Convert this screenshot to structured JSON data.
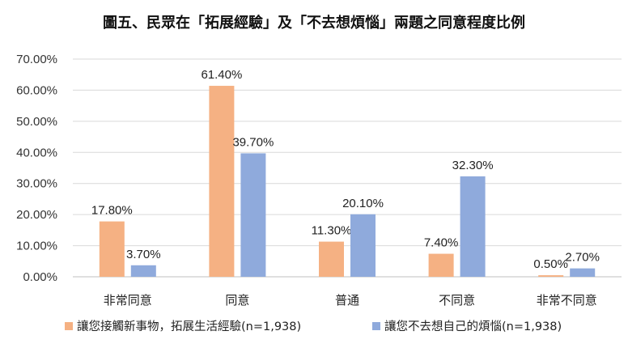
{
  "chart_data": {
    "type": "bar",
    "title": "圖五、民眾在「拓展經驗」及「不去想煩惱」兩題之同意程度比例",
    "categories": [
      "非常同意",
      "同意",
      "普通",
      "不同意",
      "非常不同意"
    ],
    "series": [
      {
        "name": "讓您接觸新事物，拓展生活經驗(n=1,938)",
        "values": [
          17.8,
          61.4,
          11.3,
          7.4,
          0.5
        ],
        "labels": [
          "17.80%",
          "61.40%",
          "11.30%",
          "7.40%",
          "0.50%"
        ],
        "color": "#f5b183"
      },
      {
        "name": "讓您不去想自己的煩惱(n=1,938)",
        "values": [
          3.7,
          39.7,
          20.1,
          32.3,
          2.7
        ],
        "labels": [
          "3.70%",
          "39.70%",
          "20.10%",
          "32.30%",
          "2.70%"
        ],
        "color": "#8faadc"
      }
    ],
    "yticks": [
      "0.00%",
      "10.00%",
      "20.00%",
      "30.00%",
      "40.00%",
      "50.00%",
      "60.00%",
      "70.00%"
    ],
    "ylim": [
      0,
      70
    ],
    "grid": true,
    "legend_position": "bottom"
  }
}
